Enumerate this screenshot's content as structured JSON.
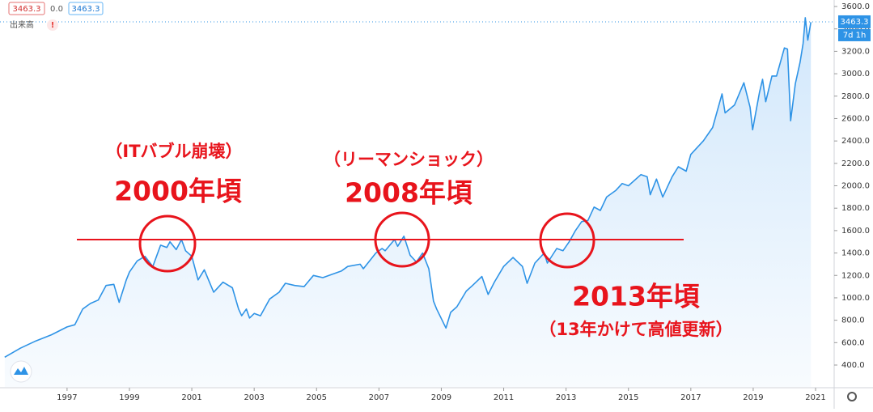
{
  "chart_data": {
    "type": "line",
    "color": "#2e93e6",
    "area_color": "#cfe6fb",
    "last_value": 3463.3,
    "change": "0.0",
    "volume_label": "出来高",
    "countdown": "7d 1h",
    "annotations": [
      "（ITバブル崩壊）",
      "2000年頃",
      "（リーマンショック）",
      "2008年頃",
      "2013年頃",
      "（13年かけて高値更新）"
    ],
    "xlim": [
      1994.85,
      2021.57
    ],
    "ylim": [
      205,
      3658
    ],
    "xticks": [
      1997,
      1999,
      2001,
      2003,
      2005,
      2007,
      2009,
      2011,
      2013,
      2015,
      2017,
      2019,
      2021
    ],
    "yticks": [
      {
        "value": 400,
        "label": "400.0"
      },
      {
        "value": 600,
        "label": "600.0"
      },
      {
        "value": 800,
        "label": "800.0"
      },
      {
        "value": 1000,
        "label": "1000.0"
      },
      {
        "value": 1200,
        "label": "1200.0"
      },
      {
        "value": 1400,
        "label": "1400.0"
      },
      {
        "value": 1600,
        "label": "1600.0"
      },
      {
        "value": 1800,
        "label": "1800.0"
      },
      {
        "value": 2000,
        "label": "2000.0"
      },
      {
        "value": 2200,
        "label": "2200.0"
      },
      {
        "value": 2400,
        "label": "2400.0"
      },
      {
        "value": 2600,
        "label": "2600.0"
      },
      {
        "value": 2800,
        "label": "2800.0"
      },
      {
        "value": 3000,
        "label": "3000.0"
      },
      {
        "value": 3200,
        "label": "3200.0"
      },
      {
        "value": 3400,
        "label": "3400.0"
      },
      {
        "value": 3600,
        "label": "3600.0"
      }
    ],
    "grid": false,
    "x": [
      1995.0,
      1995.5,
      1996.0,
      1996.5,
      1997.0,
      1997.25,
      1997.5,
      1997.75,
      1998.0,
      1998.25,
      1998.5,
      1998.67,
      1998.9,
      1999.0,
      1999.25,
      1999.5,
      1999.75,
      2000.0,
      2000.2,
      2000.3,
      2000.5,
      2000.67,
      2000.8,
      2001.0,
      2001.2,
      2001.4,
      2001.7,
      2001.8,
      2002.0,
      2002.3,
      2002.5,
      2002.6,
      2002.75,
      2002.85,
      2003.0,
      2003.2,
      2003.5,
      2003.8,
      2004.0,
      2004.3,
      2004.6,
      2004.9,
      2005.2,
      2005.5,
      2005.8,
      2006.0,
      2006.4,
      2006.5,
      2006.9,
      2007.1,
      2007.2,
      2007.5,
      2007.6,
      2007.8,
      2008.0,
      2008.2,
      2008.4,
      2008.6,
      2008.75,
      2008.85,
      2009.15,
      2009.3,
      2009.5,
      2009.8,
      2010.0,
      2010.3,
      2010.5,
      2010.7,
      2011.0,
      2011.3,
      2011.6,
      2011.75,
      2012.0,
      2012.3,
      2012.4,
      2012.7,
      2012.9,
      2013.1,
      2013.3,
      2013.5,
      2013.7,
      2013.9,
      2014.1,
      2014.3,
      2014.6,
      2014.8,
      2015.0,
      2015.4,
      2015.6,
      2015.7,
      2015.9,
      2016.1,
      2016.4,
      2016.6,
      2016.85,
      2017.0,
      2017.4,
      2017.7,
      2018.0,
      2018.1,
      2018.4,
      2018.7,
      2018.9,
      2018.98,
      2019.2,
      2019.3,
      2019.4,
      2019.6,
      2019.75,
      2020.0,
      2020.1,
      2020.2,
      2020.35,
      2020.5,
      2020.6,
      2020.67,
      2020.75,
      2020.85
    ],
    "values": [
      470,
      550,
      615,
      670,
      740,
      760,
      900,
      950,
      980,
      1110,
      1120,
      960,
      1160,
      1230,
      1330,
      1370,
      1280,
      1470,
      1450,
      1500,
      1430,
      1520,
      1420,
      1370,
      1160,
      1250,
      1050,
      1080,
      1140,
      1090,
      900,
      840,
      900,
      820,
      860,
      840,
      990,
      1050,
      1130,
      1110,
      1100,
      1200,
      1180,
      1210,
      1240,
      1280,
      1300,
      1260,
      1400,
      1440,
      1420,
      1520,
      1460,
      1550,
      1380,
      1320,
      1400,
      1260,
      970,
      900,
      730,
      870,
      920,
      1060,
      1110,
      1190,
      1030,
      1140,
      1280,
      1360,
      1280,
      1130,
      1310,
      1400,
      1310,
      1440,
      1420,
      1500,
      1600,
      1680,
      1690,
      1810,
      1780,
      1900,
      1960,
      2020,
      2000,
      2100,
      2080,
      1920,
      2060,
      1900,
      2080,
      2170,
      2130,
      2280,
      2400,
      2520,
      2820,
      2650,
      2720,
      2920,
      2700,
      2500,
      2830,
      2950,
      2750,
      2980,
      2980,
      3230,
      3220,
      2580,
      2910,
      3100,
      3270,
      3500,
      3300,
      3460
    ]
  }
}
